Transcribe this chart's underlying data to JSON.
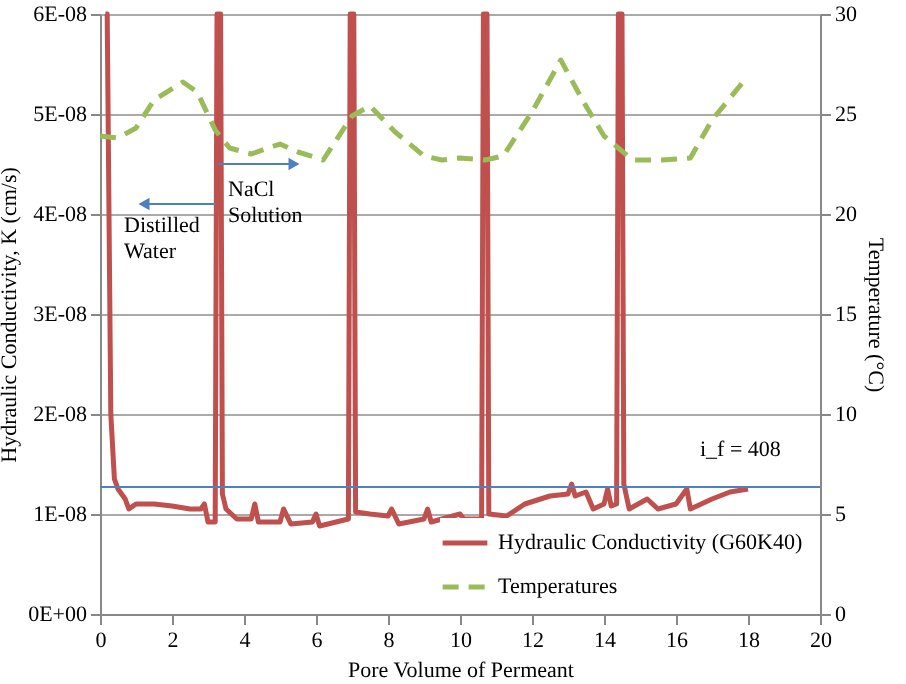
{
  "chart_data": {
    "type": "line",
    "xlabel": "Pore Volume of Permeant",
    "ylabel": "Hydraulic Conductivity, K (cm/s)",
    "y2label": "Temperature (°C)",
    "xlim": [
      0,
      20
    ],
    "xticks": [
      0,
      2,
      4,
      6,
      8,
      10,
      12,
      14,
      16,
      18,
      20
    ],
    "ylim": [
      0,
      6e-08
    ],
    "yticks": [
      {
        "value": 0,
        "label": "0E+00"
      },
      {
        "value": 1e-08,
        "label": "1E-08"
      },
      {
        "value": 2e-08,
        "label": "2E-08"
      },
      {
        "value": 3e-08,
        "label": "3E-08"
      },
      {
        "value": 4e-08,
        "label": "4E-08"
      },
      {
        "value": 5e-08,
        "label": "5E-08"
      },
      {
        "value": 6e-08,
        "label": "6E-08"
      }
    ],
    "y2lim": [
      0,
      30
    ],
    "y2ticks": [
      0,
      5,
      10,
      15,
      20,
      25,
      30
    ],
    "grid": "y",
    "legend": "bottom right",
    "marker": "none",
    "ref_lines": [
      {
        "axis": "y",
        "value": 1.27e-08,
        "color": "#4f81bd"
      }
    ],
    "annotations": [
      "Distilled Water",
      "NaCl Solution",
      "i_f = 408"
    ],
    "series": [
      {
        "name": "Hydraulic Conductivity (G60K40)",
        "color": "#c0504d",
        "line_style": "solid",
        "x": [
          0.15,
          0.2,
          0.3,
          0.4,
          0.5,
          0.7,
          0.8,
          1.0,
          1.5,
          2.0,
          2.5,
          2.8,
          2.9,
          3.0,
          3.2,
          3.25,
          3.35,
          3.4,
          3.5,
          3.8,
          4.2,
          4.3,
          4.4,
          5.0,
          5.1,
          5.3,
          5.9,
          6.0,
          6.1,
          6.9,
          6.95,
          7.05,
          7.1,
          7.5,
          8.0,
          8.1,
          8.3,
          9.0,
          9.1,
          9.2,
          10.0,
          10.1,
          10.6,
          10.65,
          10.75,
          10.8,
          11.3,
          11.8,
          12.5,
          13.0,
          13.1,
          13.2,
          13.5,
          13.7,
          14.0,
          14.1,
          14.2,
          14.35,
          14.4,
          14.5,
          14.55,
          14.7,
          15.2,
          15.5,
          16.0,
          16.3,
          16.4,
          17.0,
          17.5,
          18.0
        ],
        "values": [
          6e-08,
          6e-08,
          2e-08,
          1.35e-08,
          1.25e-08,
          1.15e-08,
          1.05e-08,
          1.1e-08,
          1.1e-08,
          1.08e-08,
          1.05e-08,
          1.05e-08,
          1.1e-08,
          9.2e-09,
          9.2e-09,
          6e-08,
          6e-08,
          1.2e-08,
          1.05e-08,
          9.5e-09,
          9.5e-09,
          1.1e-08,
          9.2e-09,
          9.2e-09,
          1.05e-08,
          9e-09,
          9.2e-09,
          1e-08,
          8.8e-09,
          9.5e-09,
          6e-08,
          6e-08,
          1.02e-08,
          1e-08,
          9.8e-09,
          1.05e-08,
          9e-09,
          9.5e-09,
          1.05e-08,
          9.2e-09,
          1e-08,
          9.5e-09,
          9.5e-09,
          6e-08,
          6e-08,
          1e-08,
          9.8e-09,
          1.1e-08,
          1.18e-08,
          1.2e-08,
          1.3e-08,
          1.18e-08,
          1.22e-08,
          1.05e-08,
          1.1e-08,
          1.25e-08,
          1.08e-08,
          1.1e-08,
          6e-08,
          6e-08,
          1.3e-08,
          1.05e-08,
          1.15e-08,
          1.05e-08,
          1.1e-08,
          1.25e-08,
          1.05e-08,
          1.15e-08,
          1.22e-08,
          1.25e-08
        ]
      },
      {
        "name": "Temperatures",
        "color": "#9bbb59",
        "line_style": "dashed",
        "axis": "y2",
        "x": [
          0,
          0.5,
          1.0,
          1.5,
          2.3,
          2.7,
          3.2,
          3.6,
          4.2,
          5.0,
          5.5,
          6.2,
          7.0,
          7.5,
          8.2,
          9.0,
          9.5,
          10.0,
          10.7,
          11.2,
          12.0,
          12.8,
          13.4,
          14.0,
          14.8,
          15.6,
          16.4,
          17.0,
          18.0
        ],
        "values": [
          23.9,
          23.8,
          24.3,
          25.7,
          26.6,
          26.1,
          24.2,
          23.3,
          23.0,
          23.5,
          23.1,
          22.7,
          24.9,
          25.4,
          24.1,
          22.9,
          22.7,
          22.8,
          22.7,
          22.9,
          25.1,
          27.7,
          25.7,
          23.9,
          22.7,
          22.7,
          22.8,
          24.7,
          26.9
        ]
      }
    ]
  }
}
